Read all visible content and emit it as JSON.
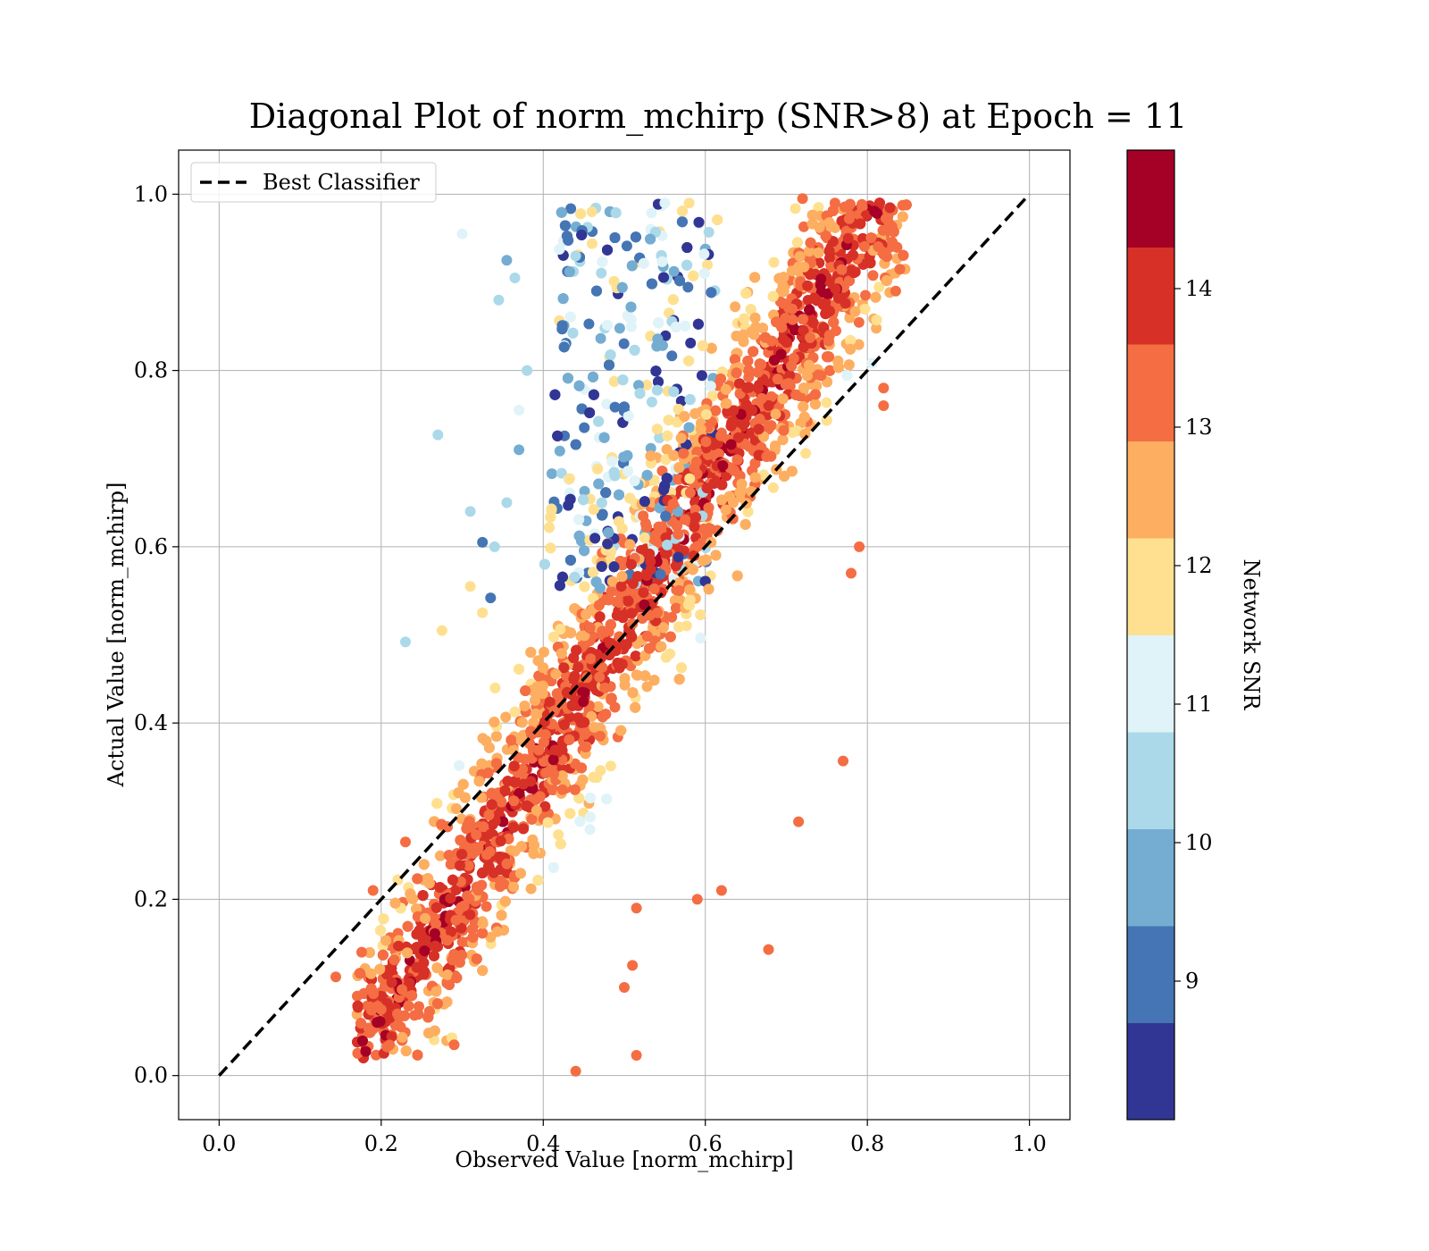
{
  "chart_data": {
    "type": "scatter",
    "title": "Diagonal Plot of norm_mchirp (SNR>8) at Epoch = 11",
    "xlabel": "Observed Value [norm_mchirp]",
    "ylabel": "Actual Value [norm_mchirp]",
    "xlim": [
      -0.05,
      1.05
    ],
    "ylim": [
      -0.05,
      1.05
    ],
    "xticks": [
      "0.0",
      "0.2",
      "0.4",
      "0.6",
      "0.8",
      "1.0"
    ],
    "yticks": [
      "0.0",
      "0.2",
      "0.4",
      "0.6",
      "0.8",
      "1.0"
    ],
    "grid": true,
    "legend": {
      "position": "top-left",
      "entries": [
        "Best Classifier"
      ]
    },
    "reference_line": {
      "name": "Best Classifier",
      "style": "dashed",
      "color": "#000000",
      "x": [
        0.0,
        1.0
      ],
      "y": [
        0.0,
        1.0
      ]
    },
    "colorbar": {
      "label": "Network SNR",
      "range": [
        8.0,
        15.0
      ],
      "ticks": [
        "9",
        "10",
        "11",
        "12",
        "13",
        "14"
      ],
      "tick_values": [
        9,
        10,
        11,
        12,
        13,
        14
      ],
      "bands": [
        "#313695",
        "#4575b4",
        "#74add1",
        "#abd9e9",
        "#e0f3f8",
        "#fee090",
        "#fdae61",
        "#f46d43",
        "#d73027",
        "#a50026"
      ]
    },
    "series": [
      {
        "color_by": "Network SNR",
        "points": [
          [
            0.144,
            0.112
          ],
          [
            0.176,
            0.14
          ],
          [
            0.19,
            0.21
          ],
          [
            0.2,
            0.075
          ],
          [
            0.22,
            0.07
          ],
          [
            0.23,
            0.265
          ],
          [
            0.27,
            0.727
          ],
          [
            0.275,
            0.505
          ],
          [
            0.23,
            0.492
          ],
          [
            0.31,
            0.64
          ],
          [
            0.31,
            0.555
          ],
          [
            0.325,
            0.605
          ],
          [
            0.325,
            0.525
          ],
          [
            0.335,
            0.542
          ],
          [
            0.3,
            0.955
          ],
          [
            0.345,
            0.88
          ],
          [
            0.355,
            0.925
          ],
          [
            0.365,
            0.905
          ],
          [
            0.38,
            0.8
          ],
          [
            0.37,
            0.755
          ],
          [
            0.37,
            0.71
          ],
          [
            0.355,
            0.65
          ],
          [
            0.34,
            0.6
          ],
          [
            0.29,
            0.035
          ],
          [
            0.44,
            0.005
          ],
          [
            0.515,
            0.023
          ],
          [
            0.51,
            0.125
          ],
          [
            0.5,
            0.1
          ],
          [
            0.678,
            0.143
          ],
          [
            0.77,
            0.357
          ],
          [
            0.715,
            0.288
          ],
          [
            0.84,
            0.915
          ],
          [
            0.835,
            0.89
          ],
          [
            0.82,
            0.78
          ],
          [
            0.82,
            0.76
          ],
          [
            0.79,
            0.6
          ],
          [
            0.78,
            0.57
          ],
          [
            0.515,
            0.19
          ],
          [
            0.59,
            0.2
          ],
          [
            0.62,
            0.21
          ],
          [
            0.44,
            0.93
          ],
          [
            0.46,
            0.98
          ],
          [
            0.55,
            0.99
          ],
          [
            0.58,
            0.99
          ],
          [
            0.72,
            0.995
          ],
          [
            0.76,
            0.99
          ]
        ]
      }
    ]
  }
}
